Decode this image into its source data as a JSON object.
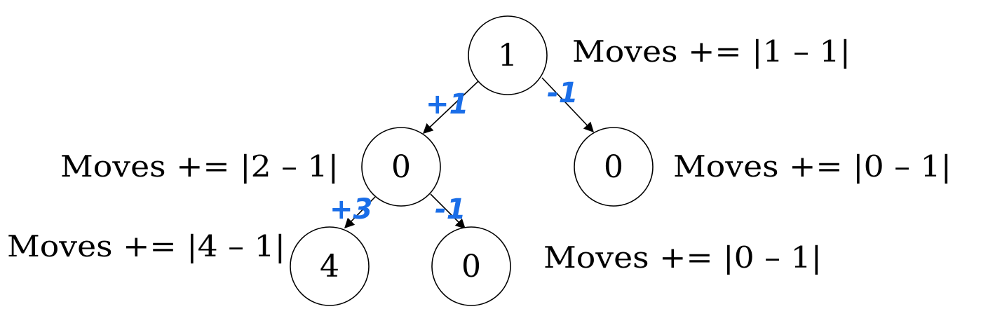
{
  "colors": {
    "flow": "#1a6ee8",
    "stroke": "#000000"
  },
  "nodes": {
    "root": {
      "value": "1",
      "moves": "Moves += |1 – 1|"
    },
    "left": {
      "value": "0",
      "moves": "Moves += |2 – 1|"
    },
    "right": {
      "value": "0",
      "moves": "Moves += |0 – 1|"
    },
    "left_left": {
      "value": "4",
      "moves": "Moves += |4 – 1|"
    },
    "left_right": {
      "value": "0",
      "moves": "Moves += |0 – 1|"
    }
  },
  "edges": {
    "root_left": {
      "flow": "+1"
    },
    "root_right": {
      "flow": "-1"
    },
    "left_left": {
      "flow": "+3"
    },
    "left_right": {
      "flow": "-1"
    }
  }
}
